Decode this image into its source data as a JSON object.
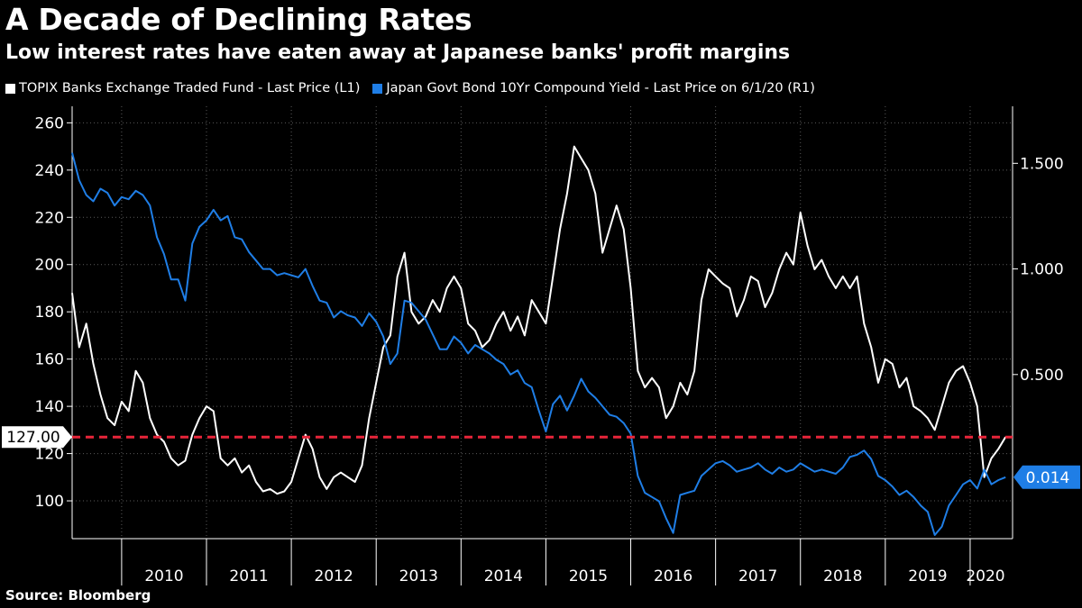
{
  "header": {
    "title": "A Decade of Declining Rates",
    "subtitle": "Low interest rates have eaten away at Japanese banks' profit margins"
  },
  "legend": [
    {
      "label": "TOPIX Banks Exchange Traded Fund - Last Price (L1)",
      "color": "#ffffff"
    },
    {
      "label": "Japan Govt Bond 10Yr Compound Yield - Last Price on 6/1/20 (R1)",
      "color": "#1f7ee6"
    }
  ],
  "footer": {
    "source": "Source: Bloomberg"
  },
  "chart_data": {
    "type": "line",
    "x_range": [
      "2009-06",
      "2020-07"
    ],
    "x_tick_labels": [
      "2010",
      "2011",
      "2012",
      "2013",
      "2014",
      "2015",
      "2016",
      "2017",
      "2018",
      "2019",
      "2020"
    ],
    "y_left": {
      "ticks": [
        100,
        120,
        140,
        160,
        180,
        200,
        220,
        240,
        260
      ],
      "range": [
        84,
        267
      ]
    },
    "y_right": {
      "ticks": [
        "0.500",
        "1.000",
        "1.500"
      ],
      "range": [
        -0.277,
        1.77
      ]
    },
    "series": [
      {
        "name": "TOPIX Banks Exchange Traded Fund - Last Price (L1)",
        "axis": "left",
        "color": "#ffffff",
        "last_value_label": "127.00",
        "points": [
          [
            "2009-06",
            188
          ],
          [
            "2009-07",
            165
          ],
          [
            "2009-08",
            175
          ],
          [
            "2009-09",
            158
          ],
          [
            "2009-10",
            145
          ],
          [
            "2009-11",
            135
          ],
          [
            "2009-12",
            132
          ],
          [
            "2010-01",
            142
          ],
          [
            "2010-02",
            138
          ],
          [
            "2010-03",
            155
          ],
          [
            "2010-04",
            150
          ],
          [
            "2010-05",
            135
          ],
          [
            "2010-06",
            128
          ],
          [
            "2010-07",
            125
          ],
          [
            "2010-08",
            118
          ],
          [
            "2010-09",
            115
          ],
          [
            "2010-10",
            117
          ],
          [
            "2010-11",
            128
          ],
          [
            "2010-12",
            135
          ],
          [
            "2011-01",
            140
          ],
          [
            "2011-02",
            138
          ],
          [
            "2011-03",
            118
          ],
          [
            "2011-04",
            115
          ],
          [
            "2011-05",
            118
          ],
          [
            "2011-06",
            112
          ],
          [
            "2011-07",
            115
          ],
          [
            "2011-08",
            108
          ],
          [
            "2011-09",
            104
          ],
          [
            "2011-10",
            105
          ],
          [
            "2011-11",
            103
          ],
          [
            "2011-12",
            104
          ],
          [
            "2012-01",
            108
          ],
          [
            "2012-02",
            118
          ],
          [
            "2012-03",
            128
          ],
          [
            "2012-04",
            122
          ],
          [
            "2012-05",
            110
          ],
          [
            "2012-06",
            105
          ],
          [
            "2012-07",
            110
          ],
          [
            "2012-08",
            112
          ],
          [
            "2012-09",
            110
          ],
          [
            "2012-10",
            108
          ],
          [
            "2012-11",
            115
          ],
          [
            "2012-12",
            135
          ],
          [
            "2013-01",
            150
          ],
          [
            "2013-02",
            165
          ],
          [
            "2013-03",
            170
          ],
          [
            "2013-04",
            195
          ],
          [
            "2013-05",
            205
          ],
          [
            "2013-06",
            180
          ],
          [
            "2013-07",
            175
          ],
          [
            "2013-08",
            178
          ],
          [
            "2013-09",
            185
          ],
          [
            "2013-10",
            180
          ],
          [
            "2013-11",
            190
          ],
          [
            "2013-12",
            195
          ],
          [
            "2014-01",
            190
          ],
          [
            "2014-02",
            175
          ],
          [
            "2014-03",
            172
          ],
          [
            "2014-04",
            165
          ],
          [
            "2014-05",
            168
          ],
          [
            "2014-06",
            175
          ],
          [
            "2014-07",
            180
          ],
          [
            "2014-08",
            172
          ],
          [
            "2014-09",
            178
          ],
          [
            "2014-10",
            170
          ],
          [
            "2014-11",
            185
          ],
          [
            "2014-12",
            180
          ],
          [
            "2015-01",
            175
          ],
          [
            "2015-02",
            195
          ],
          [
            "2015-03",
            215
          ],
          [
            "2015-04",
            230
          ],
          [
            "2015-05",
            250
          ],
          [
            "2015-06",
            245
          ],
          [
            "2015-07",
            240
          ],
          [
            "2015-08",
            230
          ],
          [
            "2015-09",
            205
          ],
          [
            "2015-10",
            215
          ],
          [
            "2015-11",
            225
          ],
          [
            "2015-12",
            215
          ],
          [
            "2016-01",
            190
          ],
          [
            "2016-02",
            155
          ],
          [
            "2016-03",
            148
          ],
          [
            "2016-04",
            152
          ],
          [
            "2016-05",
            148
          ],
          [
            "2016-06",
            135
          ],
          [
            "2016-07",
            140
          ],
          [
            "2016-08",
            150
          ],
          [
            "2016-09",
            145
          ],
          [
            "2016-10",
            155
          ],
          [
            "2016-11",
            185
          ],
          [
            "2016-12",
            198
          ],
          [
            "2017-01",
            195
          ],
          [
            "2017-02",
            192
          ],
          [
            "2017-03",
            190
          ],
          [
            "2017-04",
            178
          ],
          [
            "2017-05",
            185
          ],
          [
            "2017-06",
            195
          ],
          [
            "2017-07",
            193
          ],
          [
            "2017-08",
            182
          ],
          [
            "2017-09",
            188
          ],
          [
            "2017-10",
            198
          ],
          [
            "2017-11",
            205
          ],
          [
            "2017-12",
            200
          ],
          [
            "2018-01",
            222
          ],
          [
            "2018-02",
            208
          ],
          [
            "2018-03",
            198
          ],
          [
            "2018-04",
            202
          ],
          [
            "2018-05",
            195
          ],
          [
            "2018-06",
            190
          ],
          [
            "2018-07",
            195
          ],
          [
            "2018-08",
            190
          ],
          [
            "2018-09",
            195
          ],
          [
            "2018-10",
            175
          ],
          [
            "2018-11",
            165
          ],
          [
            "2018-12",
            150
          ],
          [
            "2019-01",
            160
          ],
          [
            "2019-02",
            158
          ],
          [
            "2019-03",
            148
          ],
          [
            "2019-04",
            152
          ],
          [
            "2019-05",
            140
          ],
          [
            "2019-06",
            138
          ],
          [
            "2019-07",
            135
          ],
          [
            "2019-08",
            130
          ],
          [
            "2019-09",
            140
          ],
          [
            "2019-10",
            150
          ],
          [
            "2019-11",
            155
          ],
          [
            "2019-12",
            157
          ],
          [
            "2020-01",
            150
          ],
          [
            "2020-02",
            140
          ],
          [
            "2020-03",
            110
          ],
          [
            "2020-04",
            118
          ],
          [
            "2020-05",
            122
          ],
          [
            "2020-06",
            127
          ]
        ]
      },
      {
        "name": "Japan Govt Bond 10Yr Compound Yield - Last Price on 6/1/20 (R1)",
        "axis": "right",
        "color": "#1f7ee6",
        "last_value_label": "0.014",
        "points": [
          [
            "2009-06",
            1.55
          ],
          [
            "2009-07",
            1.42
          ],
          [
            "2009-08",
            1.35
          ],
          [
            "2009-09",
            1.32
          ],
          [
            "2009-10",
            1.38
          ],
          [
            "2009-11",
            1.36
          ],
          [
            "2009-12",
            1.3
          ],
          [
            "2010-01",
            1.34
          ],
          [
            "2010-02",
            1.33
          ],
          [
            "2010-03",
            1.37
          ],
          [
            "2010-04",
            1.35
          ],
          [
            "2010-05",
            1.3
          ],
          [
            "2010-06",
            1.15
          ],
          [
            "2010-07",
            1.07
          ],
          [
            "2010-08",
            0.95
          ],
          [
            "2010-09",
            0.95
          ],
          [
            "2010-10",
            0.85
          ],
          [
            "2010-11",
            1.12
          ],
          [
            "2010-12",
            1.2
          ],
          [
            "2011-01",
            1.23
          ],
          [
            "2011-02",
            1.28
          ],
          [
            "2011-03",
            1.23
          ],
          [
            "2011-04",
            1.25
          ],
          [
            "2011-05",
            1.15
          ],
          [
            "2011-06",
            1.14
          ],
          [
            "2011-07",
            1.08
          ],
          [
            "2011-08",
            1.04
          ],
          [
            "2011-09",
            1.0
          ],
          [
            "2011-10",
            1.0
          ],
          [
            "2011-11",
            0.97
          ],
          [
            "2011-12",
            0.98
          ],
          [
            "2012-01",
            0.97
          ],
          [
            "2012-02",
            0.96
          ],
          [
            "2012-03",
            1.0
          ],
          [
            "2012-04",
            0.92
          ],
          [
            "2012-05",
            0.85
          ],
          [
            "2012-06",
            0.84
          ],
          [
            "2012-07",
            0.77
          ],
          [
            "2012-08",
            0.8
          ],
          [
            "2012-09",
            0.78
          ],
          [
            "2012-10",
            0.77
          ],
          [
            "2012-11",
            0.73
          ],
          [
            "2012-12",
            0.79
          ],
          [
            "2013-01",
            0.75
          ],
          [
            "2013-02",
            0.68
          ],
          [
            "2013-03",
            0.55
          ],
          [
            "2013-04",
            0.6
          ],
          [
            "2013-05",
            0.85
          ],
          [
            "2013-06",
            0.84
          ],
          [
            "2013-07",
            0.8
          ],
          [
            "2013-08",
            0.76
          ],
          [
            "2013-09",
            0.69
          ],
          [
            "2013-10",
            0.62
          ],
          [
            "2013-11",
            0.62
          ],
          [
            "2013-12",
            0.68
          ],
          [
            "2014-01",
            0.65
          ],
          [
            "2014-02",
            0.6
          ],
          [
            "2014-03",
            0.64
          ],
          [
            "2014-04",
            0.62
          ],
          [
            "2014-05",
            0.6
          ],
          [
            "2014-06",
            0.57
          ],
          [
            "2014-07",
            0.55
          ],
          [
            "2014-08",
            0.5
          ],
          [
            "2014-09",
            0.52
          ],
          [
            "2014-10",
            0.46
          ],
          [
            "2014-11",
            0.44
          ],
          [
            "2014-12",
            0.33
          ],
          [
            "2015-01",
            0.23
          ],
          [
            "2015-02",
            0.36
          ],
          [
            "2015-03",
            0.4
          ],
          [
            "2015-04",
            0.33
          ],
          [
            "2015-05",
            0.4
          ],
          [
            "2015-06",
            0.48
          ],
          [
            "2015-07",
            0.42
          ],
          [
            "2015-08",
            0.39
          ],
          [
            "2015-09",
            0.35
          ],
          [
            "2015-10",
            0.31
          ],
          [
            "2015-11",
            0.3
          ],
          [
            "2015-12",
            0.27
          ],
          [
            "2016-01",
            0.22
          ],
          [
            "2016-02",
            0.02
          ],
          [
            "2016-03",
            -0.06
          ],
          [
            "2016-04",
            -0.08
          ],
          [
            "2016-05",
            -0.1
          ],
          [
            "2016-06",
            -0.18
          ],
          [
            "2016-07",
            -0.25
          ],
          [
            "2016-08",
            -0.07
          ],
          [
            "2016-09",
            -0.06
          ],
          [
            "2016-10",
            -0.05
          ],
          [
            "2016-11",
            0.02
          ],
          [
            "2016-12",
            0.05
          ],
          [
            "2017-01",
            0.08
          ],
          [
            "2017-02",
            0.09
          ],
          [
            "2017-03",
            0.07
          ],
          [
            "2017-04",
            0.04
          ],
          [
            "2017-05",
            0.05
          ],
          [
            "2017-06",
            0.06
          ],
          [
            "2017-07",
            0.08
          ],
          [
            "2017-08",
            0.05
          ],
          [
            "2017-09",
            0.03
          ],
          [
            "2017-10",
            0.06
          ],
          [
            "2017-11",
            0.04
          ],
          [
            "2017-12",
            0.05
          ],
          [
            "2018-01",
            0.08
          ],
          [
            "2018-02",
            0.06
          ],
          [
            "2018-03",
            0.04
          ],
          [
            "2018-04",
            0.05
          ],
          [
            "2018-05",
            0.04
          ],
          [
            "2018-06",
            0.03
          ],
          [
            "2018-07",
            0.06
          ],
          [
            "2018-08",
            0.11
          ],
          [
            "2018-09",
            0.12
          ],
          [
            "2018-10",
            0.14
          ],
          [
            "2018-11",
            0.1
          ],
          [
            "2018-12",
            0.02
          ],
          [
            "2019-01",
            0.0
          ],
          [
            "2019-02",
            -0.03
          ],
          [
            "2019-03",
            -0.07
          ],
          [
            "2019-04",
            -0.05
          ],
          [
            "2019-05",
            -0.08
          ],
          [
            "2019-06",
            -0.12
          ],
          [
            "2019-07",
            -0.15
          ],
          [
            "2019-08",
            -0.26
          ],
          [
            "2019-09",
            -0.22
          ],
          [
            "2019-10",
            -0.12
          ],
          [
            "2019-11",
            -0.07
          ],
          [
            "2019-12",
            -0.02
          ],
          [
            "2020-01",
            0.0
          ],
          [
            "2020-02",
            -0.04
          ],
          [
            "2020-03",
            0.05
          ],
          [
            "2020-04",
            -0.02
          ],
          [
            "2020-05",
            0.0
          ],
          [
            "2020-06",
            0.014
          ]
        ]
      }
    ],
    "reference_line": {
      "value": 127.0,
      "axis": "left",
      "color": "#e8253a",
      "style": "dashed"
    },
    "grid": true,
    "legend_position": "top-left"
  }
}
